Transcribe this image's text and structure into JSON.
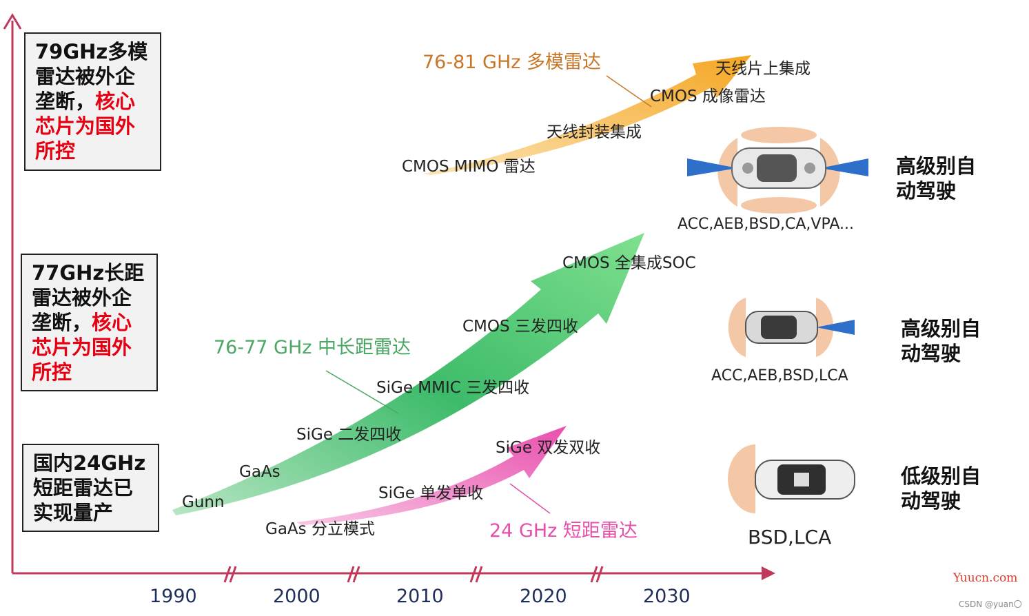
{
  "left_boxes": [
    {
      "black": "79GHz多模雷达被外企垄断，",
      "red": "核心芯片为国外所控"
    },
    {
      "black": "77GHz长距雷达被外企垄断，",
      "red": "核心芯片为国外所控"
    },
    {
      "black": "国内24GHz短距雷达已实现量产",
      "red": ""
    }
  ],
  "band_titles": {
    "band_79": "76-81 GHz 多模雷达",
    "band_77": "76-77 GHz 中长距雷达",
    "band_24": "24 GHz 短距雷达"
  },
  "milestones": {
    "m79_1": "CMOS MIMO 雷达",
    "m79_2": "天线封装集成",
    "m79_3": "CMOS 成像雷达",
    "m79_4": "天线片上集成",
    "m77_1": "Gunn",
    "m77_2": "GaAs",
    "m77_3": "SiGe 二发四收",
    "m77_4": "SiGe MMIC 三发四收",
    "m77_5": "CMOS 三发四收",
    "m77_6": "CMOS 全集成SOC",
    "m24_1": "GaAs 分立模式",
    "m24_2": "SiGe 单发单收",
    "m24_3": "SiGe 双发双收"
  },
  "levels": {
    "top": "高级别自动驾驶",
    "mid": "高级别自动驾驶",
    "low": "低级别自动驾驶"
  },
  "functions": {
    "top": "ACC,AEB,BSD,CA,VPA...",
    "mid": "ACC,AEB,BSD,LCA",
    "low": "BSD,LCA"
  },
  "years": [
    "1990",
    "2000",
    "2010",
    "2020",
    "2030"
  ],
  "watermarks": {
    "yuucn": "Yuucn.com",
    "csdn": "CSDN @yuan〇"
  },
  "colors": {
    "axis": "#c0385a",
    "band_79": "#f5a623",
    "band_77": "#3dbb6a",
    "band_24": "#e94fae",
    "title_79": "#c8772a",
    "title_77": "#4aa864",
    "title_24": "#e54fa9",
    "highlight": "#e60012",
    "sensor": "#f4c8a6",
    "beam": "#2e6fc9"
  }
}
